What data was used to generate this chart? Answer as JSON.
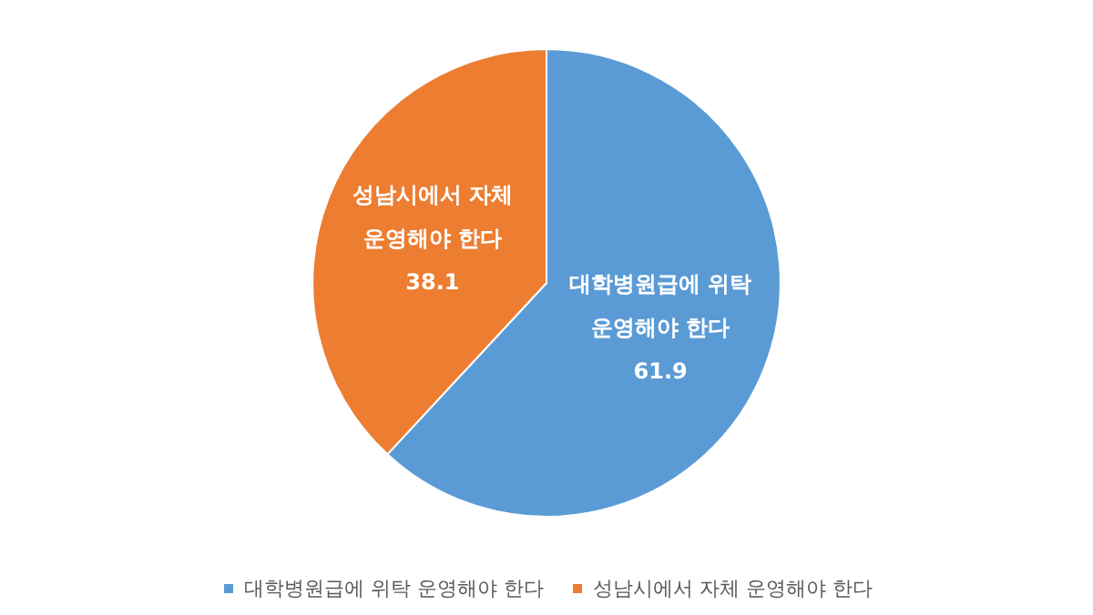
{
  "chart_data": {
    "type": "pie",
    "categories": [
      "대학병원급에 위탁 운영해야 한다",
      "성남시에서 자체 운영해야 한다"
    ],
    "values": [
      61.9,
      38.1
    ],
    "colors": [
      "#5b9bd5",
      "#ed7d31"
    ],
    "data_labels": true,
    "legend": "bottom"
  }
}
